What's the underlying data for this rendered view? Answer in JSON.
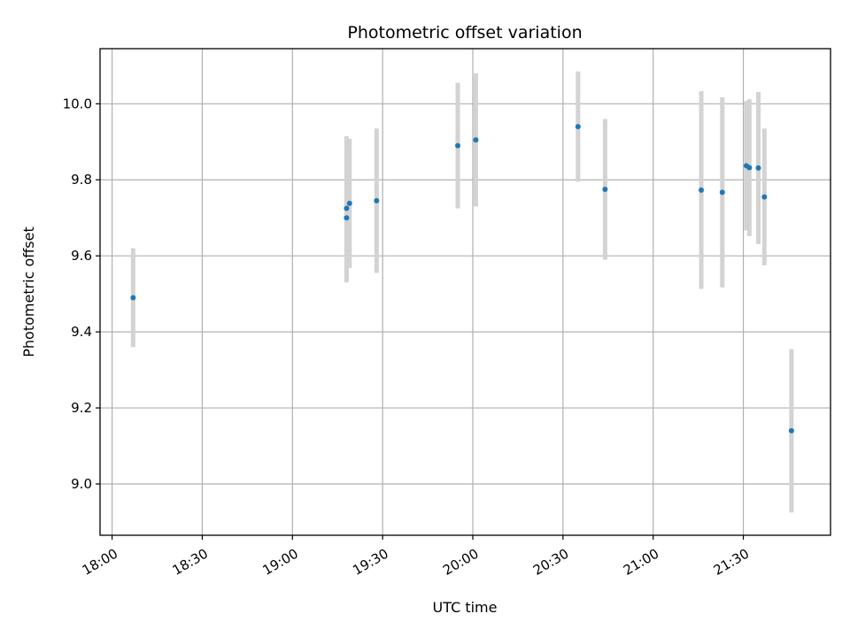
{
  "chart_data": {
    "type": "scatter",
    "title": "Photometric offset variation",
    "xlabel": "UTC time",
    "ylabel": "Photometric offset",
    "xlim": [
      "17:56",
      "21:59"
    ],
    "ylim": [
      8.865,
      10.145
    ],
    "xticks": [
      "18:00",
      "18:30",
      "19:00",
      "19:30",
      "20:00",
      "20:30",
      "21:00",
      "21:30"
    ],
    "yticks": [
      9.0,
      9.2,
      9.4,
      9.6,
      9.8,
      10.0
    ],
    "grid": true,
    "colors": {
      "points": "#1f77b4",
      "errorbars": "#d3d3d3",
      "grid": "#b0b0b0"
    },
    "points": [
      {
        "x": "18:07",
        "y": 9.49,
        "yerr": 0.13
      },
      {
        "x": "19:18",
        "y": 9.725,
        "yerr": 0.19
      },
      {
        "x": "19:18",
        "y": 9.7,
        "yerr": 0.17
      },
      {
        "x": "19:19",
        "y": 9.738,
        "yerr": 0.17
      },
      {
        "x": "19:28",
        "y": 9.745,
        "yerr": 0.19
      },
      {
        "x": "19:55",
        "y": 9.89,
        "yerr": 0.165
      },
      {
        "x": "20:01",
        "y": 9.905,
        "yerr": 0.175
      },
      {
        "x": "20:35",
        "y": 9.94,
        "yerr": 0.145
      },
      {
        "x": "20:44",
        "y": 9.775,
        "yerr": 0.185
      },
      {
        "x": "21:16",
        "y": 9.773,
        "yerr": 0.26
      },
      {
        "x": "21:23",
        "y": 9.767,
        "yerr": 0.25
      },
      {
        "x": "21:31",
        "y": 9.837,
        "yerr": 0.17
      },
      {
        "x": "21:32",
        "y": 9.832,
        "yerr": 0.18
      },
      {
        "x": "21:35",
        "y": 9.831,
        "yerr": 0.2
      },
      {
        "x": "21:37",
        "y": 9.755,
        "yerr": 0.18
      },
      {
        "x": "21:46",
        "y": 9.14,
        "yerr": 0.215
      }
    ]
  }
}
